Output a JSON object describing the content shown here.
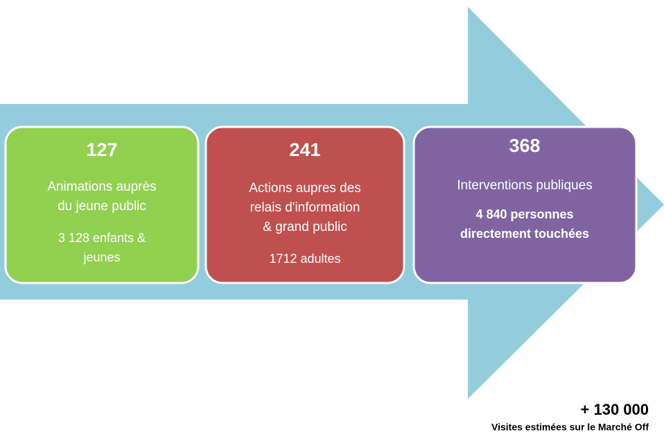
{
  "nodes": [
    {
      "number": "127",
      "label": [
        "Animations auprès",
        "du jeune public"
      ],
      "detail": [
        "3 128 enfants &",
        "jeunes"
      ]
    },
    {
      "number": "241",
      "label": [
        "Actions aupres des",
        "relais d'information",
        "& grand public"
      ],
      "detail": [
        "1712 adultes"
      ]
    },
    {
      "number": "368",
      "label": [
        "Interventions publiques"
      ],
      "detail": [
        "4 840 personnes",
        "directement touchées"
      ]
    }
  ],
  "footer": {
    "total": "+ 130 000",
    "caption": "Visites estimées sur le Marché Off"
  }
}
